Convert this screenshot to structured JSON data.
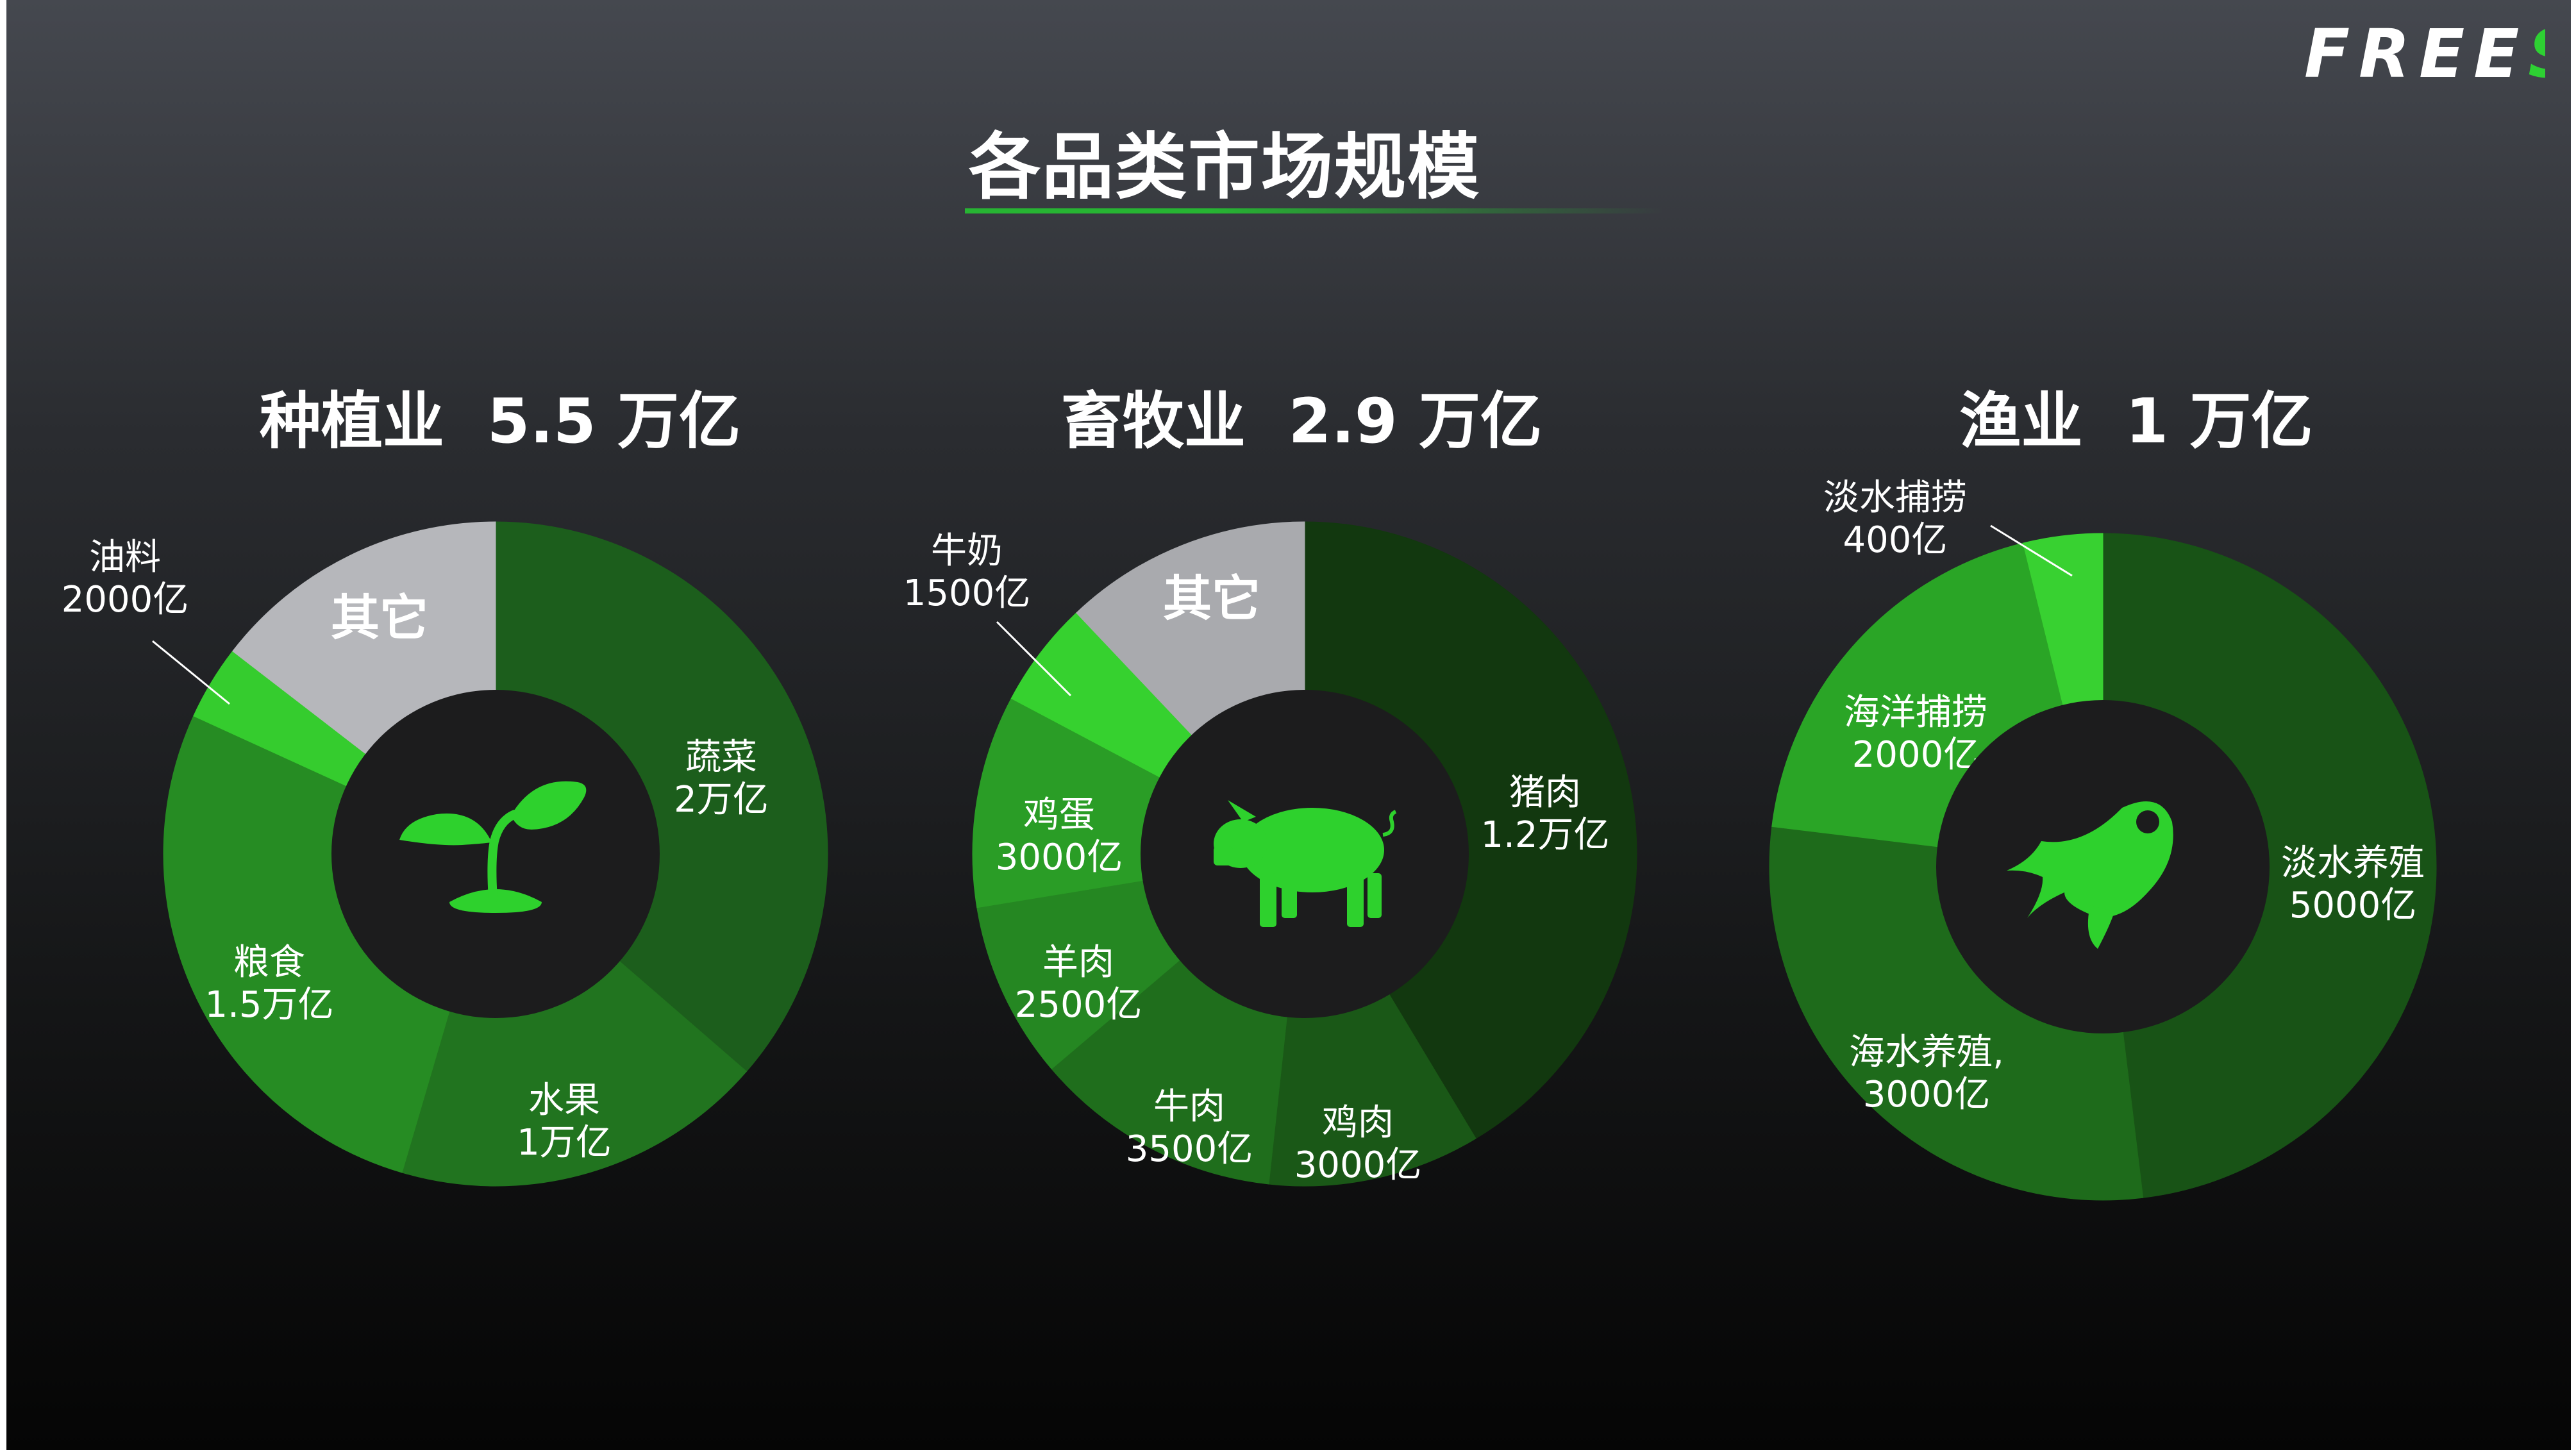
{
  "logo": {
    "text": "FREES",
    "colors": [
      "#ffffff",
      "#ffffff",
      "#ffffff",
      "#ffffff",
      "#2ed033"
    ]
  },
  "title": "各品类市场规模",
  "colors": {
    "background_top": "#45484f",
    "background_bottom": "#050505",
    "accent_green": "#27b433",
    "icon_green": "#2ed12d",
    "hole": "#1c1c1d",
    "other_gray": "#b6b7bb"
  },
  "chart_data": [
    {
      "type": "pie",
      "variant": "donut",
      "icon": "sprout-icon",
      "title": "种植业  5.5 万亿",
      "slices": [
        {
          "label": [
            "蔬菜",
            "2万亿"
          ],
          "value": 20000,
          "color": "#1c5e1c"
        },
        {
          "label": [
            "水果",
            "1万亿"
          ],
          "value": 10000,
          "color": "#21741f"
        },
        {
          "label": [
            "粮食",
            "1.5万亿"
          ],
          "value": 15000,
          "color": "#268c23"
        },
        {
          "label": [
            "油料",
            "2000亿"
          ],
          "value": 2000,
          "color": "#35cc2e",
          "external": true
        },
        {
          "label": [
            "其它"
          ],
          "value": 8000,
          "color": "#b6b7bb",
          "bold": true
        }
      ]
    },
    {
      "type": "pie",
      "variant": "donut",
      "icon": "pig-icon",
      "title": "畜牧业  2.9 万亿",
      "slices": [
        {
          "label": [
            "猪肉",
            "1.2万亿"
          ],
          "value": 12000,
          "color": "#12380f"
        },
        {
          "label": [
            "鸡肉",
            "3000亿"
          ],
          "value": 3000,
          "color": "#1a5817"
        },
        {
          "label": [
            "牛肉",
            "3500亿"
          ],
          "value": 3500,
          "color": "#1f6e1c"
        },
        {
          "label": [
            "羊肉",
            "2500亿"
          ],
          "value": 2500,
          "color": "#258722"
        },
        {
          "label": [
            "鸡蛋",
            "3000亿"
          ],
          "value": 3000,
          "color": "#2a9d26"
        },
        {
          "label": [
            "牛奶",
            "1500亿"
          ],
          "value": 1500,
          "color": "#36d12f",
          "external": true
        },
        {
          "label": [
            "其它"
          ],
          "value": 3500,
          "color": "#a9aaae",
          "bold": true
        }
      ]
    },
    {
      "type": "pie",
      "variant": "donut",
      "icon": "fish-icon",
      "title": "渔业  1 万亿",
      "slices": [
        {
          "label": [
            "淡水养殖",
            "5000亿"
          ],
          "value": 5000,
          "color": "#185316"
        },
        {
          "label": [
            "海水养殖,",
            "3000亿"
          ],
          "value": 3000,
          "color": "#1e6b1b"
        },
        {
          "label": [
            "海洋捕捞",
            "2000亿"
          ],
          "value": 2000,
          "color": "#2aa526"
        },
        {
          "label": [
            "淡水捕捞",
            "400亿"
          ],
          "value": 400,
          "color": "#38d131",
          "external": true
        }
      ]
    }
  ]
}
